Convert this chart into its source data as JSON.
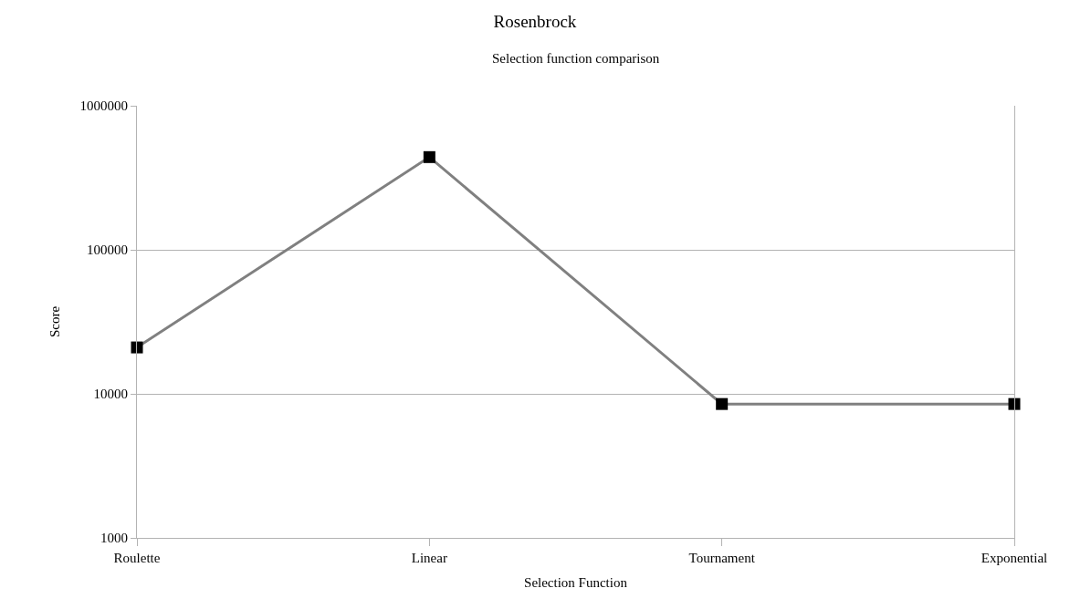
{
  "chart_data": {
    "type": "line",
    "title": "Rosenbrock",
    "subtitle": "Selection function comparison",
    "xlabel": "Selection Function",
    "ylabel": "Score",
    "categories": [
      "Roulette",
      "Linear",
      "Tournament",
      "Exponential"
    ],
    "series": [
      {
        "color": "#808080",
        "values": [
          21000,
          440000,
          8500,
          8500
        ]
      }
    ],
    "log": true,
    "ylim": [
      1000,
      1000000
    ],
    "yticks": [
      1000,
      10000,
      100000,
      1000000
    ],
    "grid": "y",
    "marker": "square",
    "line_style": "solid"
  }
}
